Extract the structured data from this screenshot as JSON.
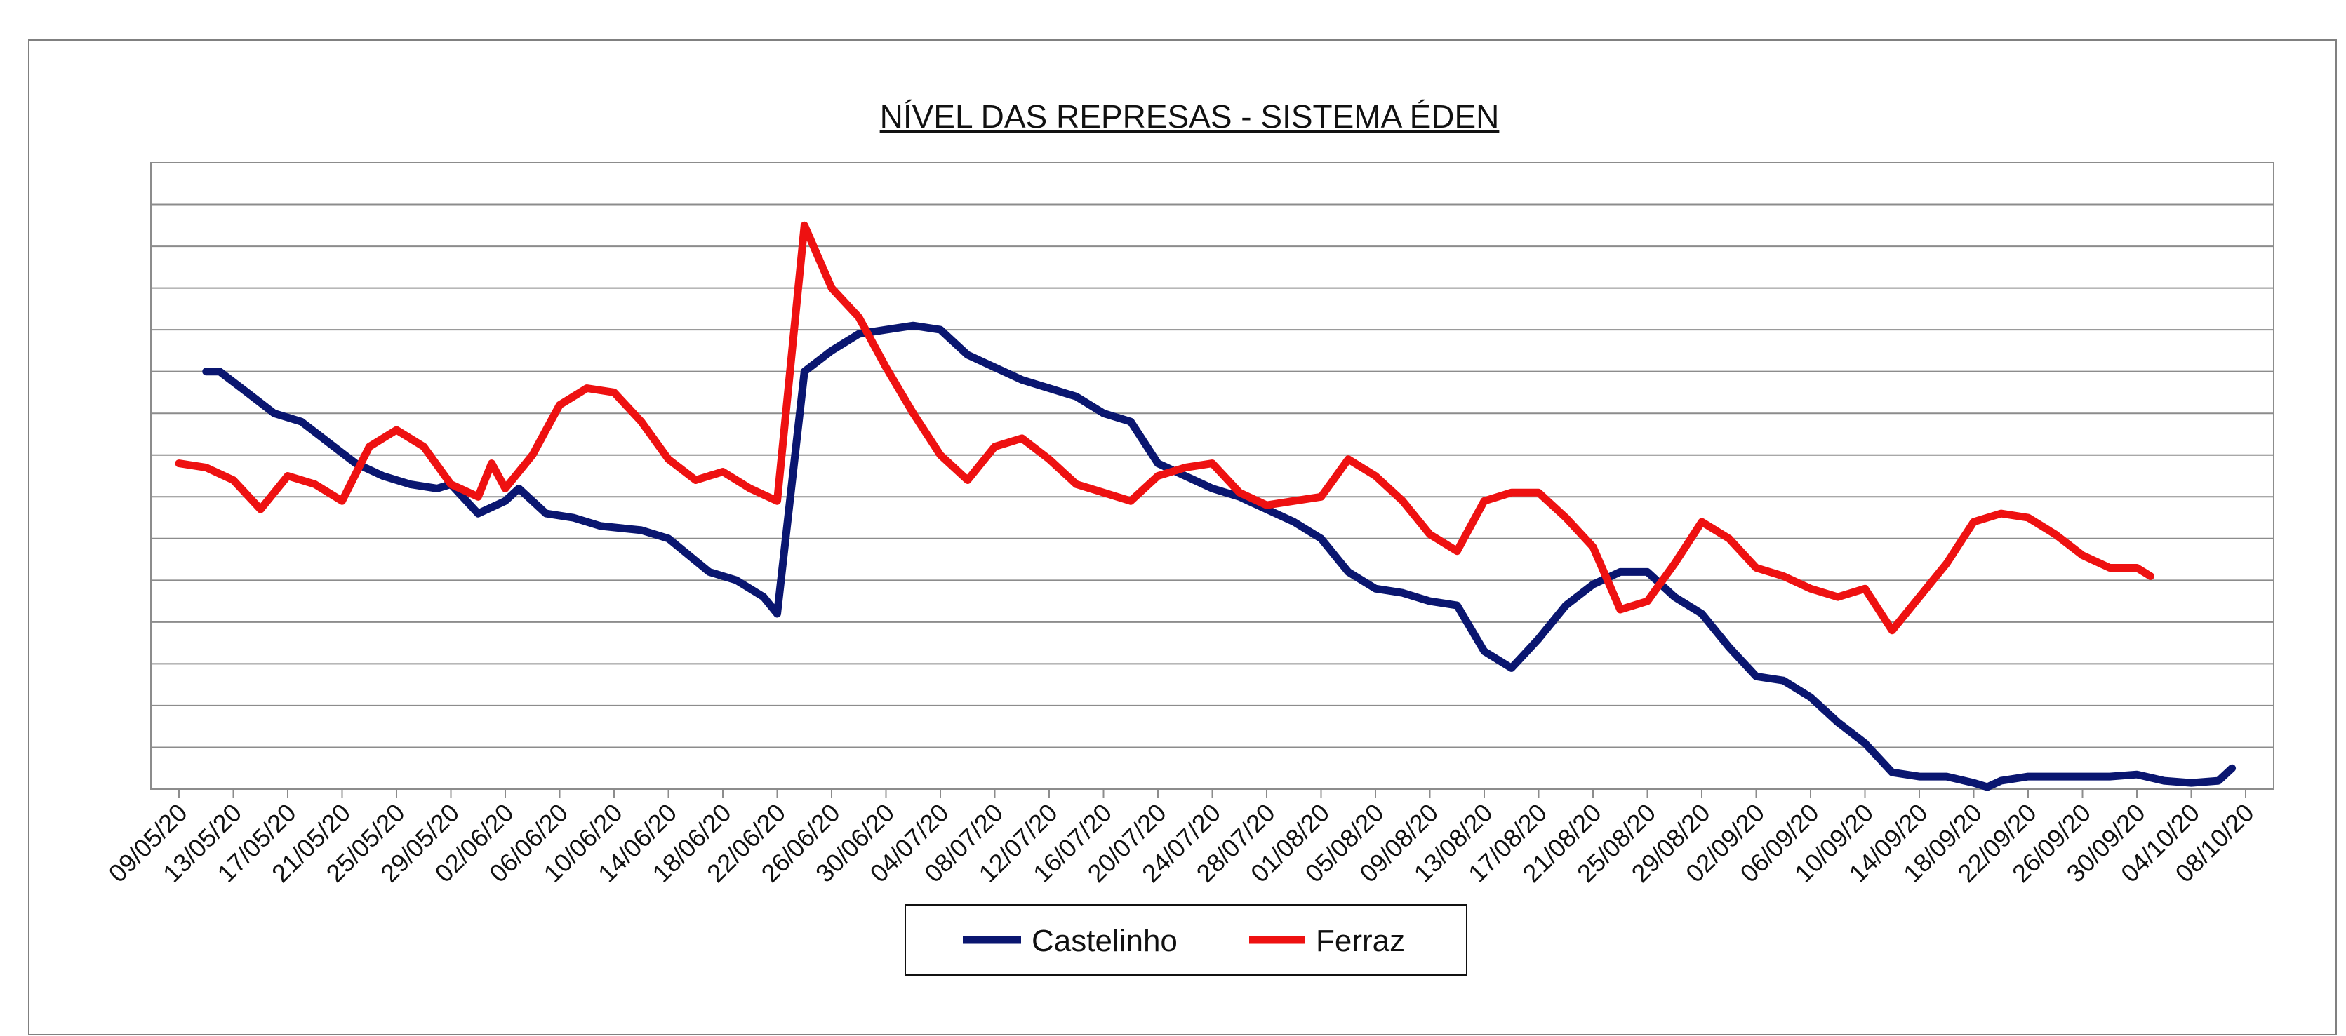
{
  "chart_data": {
    "type": "line",
    "title": "NÍVEL DAS REPRESAS - SISTEMA ÉDEN",
    "xlabel": "",
    "ylabel": "",
    "grid": true,
    "y_tick_labels_visible": false,
    "ylim": [
      0,
      15
    ],
    "x_ticks": [
      "09/05/20",
      "13/05/20",
      "17/05/20",
      "21/05/20",
      "25/05/20",
      "29/05/20",
      "02/06/20",
      "06/06/20",
      "10/06/20",
      "14/06/20",
      "18/06/20",
      "22/06/20",
      "26/06/20",
      "30/06/20",
      "04/07/20",
      "08/07/20",
      "12/07/20",
      "16/07/20",
      "20/07/20",
      "24/07/20",
      "28/07/20",
      "01/08/20",
      "05/08/20",
      "09/08/20",
      "13/08/20",
      "17/08/20",
      "21/08/20",
      "25/08/20",
      "29/08/20",
      "02/09/20",
      "06/09/20",
      "10/09/20",
      "14/09/20",
      "18/09/20",
      "22/09/20",
      "26/09/20",
      "30/09/20",
      "04/10/20",
      "08/10/20"
    ],
    "x_unit": "days since 09/05/20",
    "legend_position": "bottom",
    "series": [
      {
        "name": "Castelinho",
        "color": "#0a1670",
        "points": [
          [
            2,
            10
          ],
          [
            3,
            10
          ],
          [
            5,
            9.5
          ],
          [
            7,
            9
          ],
          [
            9,
            8.8
          ],
          [
            11,
            8.3
          ],
          [
            13,
            7.8
          ],
          [
            15,
            7.5
          ],
          [
            17,
            7.3
          ],
          [
            19,
            7.2
          ],
          [
            20,
            7.3
          ],
          [
            22,
            6.6
          ],
          [
            24,
            6.9
          ],
          [
            25,
            7.2
          ],
          [
            27,
            6.6
          ],
          [
            29,
            6.5
          ],
          [
            31,
            6.3
          ],
          [
            34,
            6.2
          ],
          [
            36,
            6
          ],
          [
            39,
            5.2
          ],
          [
            41,
            5
          ],
          [
            43,
            4.6
          ],
          [
            44,
            4.2
          ],
          [
            46,
            10
          ],
          [
            48,
            10.5
          ],
          [
            50,
            10.9
          ],
          [
            52,
            11
          ],
          [
            54,
            11.1
          ],
          [
            56,
            11
          ],
          [
            58,
            10.4
          ],
          [
            60,
            10.1
          ],
          [
            62,
            9.8
          ],
          [
            64,
            9.6
          ],
          [
            66,
            9.4
          ],
          [
            68,
            9
          ],
          [
            70,
            8.8
          ],
          [
            72,
            7.8
          ],
          [
            74,
            7.5
          ],
          [
            76,
            7.2
          ],
          [
            78,
            7
          ],
          [
            80,
            6.7
          ],
          [
            82,
            6.4
          ],
          [
            84,
            6
          ],
          [
            86,
            5.2
          ],
          [
            88,
            4.8
          ],
          [
            90,
            4.7
          ],
          [
            92,
            4.5
          ],
          [
            94,
            4.4
          ],
          [
            96,
            3.3
          ],
          [
            98,
            2.9
          ],
          [
            100,
            3.6
          ],
          [
            102,
            4.4
          ],
          [
            104,
            4.9
          ],
          [
            106,
            5.2
          ],
          [
            108,
            5.2
          ],
          [
            110,
            4.6
          ],
          [
            112,
            4.2
          ],
          [
            114,
            3.4
          ],
          [
            116,
            2.7
          ],
          [
            118,
            2.6
          ],
          [
            120,
            2.2
          ],
          [
            122,
            1.6
          ],
          [
            124,
            1.1
          ],
          [
            126,
            0.4
          ],
          [
            128,
            0.3
          ],
          [
            130,
            0.3
          ],
          [
            132,
            0.15
          ],
          [
            133,
            0.05
          ],
          [
            134,
            0.2
          ],
          [
            136,
            0.3
          ],
          [
            138,
            0.3
          ],
          [
            140,
            0.3
          ],
          [
            142,
            0.3
          ],
          [
            144,
            0.35
          ],
          [
            146,
            0.2
          ],
          [
            148,
            0.15
          ],
          [
            150,
            0.2
          ],
          [
            151,
            0.5
          ]
        ]
      },
      {
        "name": "Ferraz",
        "color": "#ee1111",
        "points": [
          [
            0,
            7.8
          ],
          [
            2,
            7.7
          ],
          [
            4,
            7.4
          ],
          [
            6,
            6.7
          ],
          [
            8,
            7.5
          ],
          [
            10,
            7.3
          ],
          [
            12,
            6.9
          ],
          [
            14,
            8.2
          ],
          [
            16,
            8.6
          ],
          [
            18,
            8.2
          ],
          [
            20,
            7.3
          ],
          [
            22,
            7.0
          ],
          [
            23,
            7.8
          ],
          [
            24,
            7.2
          ],
          [
            26,
            8.0
          ],
          [
            28,
            9.2
          ],
          [
            30,
            9.6
          ],
          [
            32,
            9.5
          ],
          [
            34,
            8.8
          ],
          [
            36,
            7.9
          ],
          [
            38,
            7.4
          ],
          [
            40,
            7.6
          ],
          [
            42,
            7.2
          ],
          [
            44,
            6.9
          ],
          [
            46,
            13.5
          ],
          [
            48,
            12
          ],
          [
            50,
            11.3
          ],
          [
            52,
            10.1
          ],
          [
            54,
            9
          ],
          [
            56,
            8
          ],
          [
            58,
            7.4
          ],
          [
            60,
            8.2
          ],
          [
            62,
            8.4
          ],
          [
            64,
            7.9
          ],
          [
            66,
            7.3
          ],
          [
            68,
            7.1
          ],
          [
            70,
            6.9
          ],
          [
            72,
            7.5
          ],
          [
            74,
            7.7
          ],
          [
            76,
            7.8
          ],
          [
            78,
            7.1
          ],
          [
            80,
            6.8
          ],
          [
            82,
            6.9
          ],
          [
            84,
            7.0
          ],
          [
            86,
            7.9
          ],
          [
            88,
            7.5
          ],
          [
            90,
            6.9
          ],
          [
            92,
            6.1
          ],
          [
            94,
            5.7
          ],
          [
            96,
            6.9
          ],
          [
            98,
            7.1
          ],
          [
            100,
            7.1
          ],
          [
            102,
            6.5
          ],
          [
            104,
            5.8
          ],
          [
            106,
            4.3
          ],
          [
            108,
            4.5
          ],
          [
            110,
            5.4
          ],
          [
            112,
            6.4
          ],
          [
            114,
            6.0
          ],
          [
            116,
            5.3
          ],
          [
            118,
            5.1
          ],
          [
            120,
            4.8
          ],
          [
            122,
            4.6
          ],
          [
            124,
            4.8
          ],
          [
            126,
            3.8
          ],
          [
            128,
            4.6
          ],
          [
            130,
            5.4
          ],
          [
            132,
            6.4
          ],
          [
            134,
            6.6
          ],
          [
            136,
            6.5
          ],
          [
            138,
            6.1
          ],
          [
            140,
            5.6
          ],
          [
            142,
            5.3
          ],
          [
            144,
            5.3
          ],
          [
            145,
            5.1
          ]
        ]
      }
    ]
  }
}
